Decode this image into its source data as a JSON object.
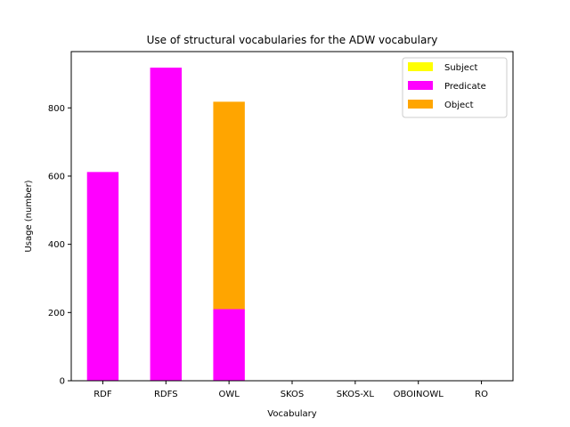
{
  "chart_data": {
    "type": "bar",
    "stacked": true,
    "title": "Use of structural vocabularies for the ADW vocabulary",
    "xlabel": "Vocabulary",
    "ylabel": "Usage (number)",
    "categories": [
      "RDF",
      "RDFS",
      "OWL",
      "SKOS",
      "SKOS-XL",
      "OBOINOWL",
      "RO"
    ],
    "yticks": [
      0,
      200,
      400,
      600,
      800
    ],
    "ylim": [
      0,
      965
    ],
    "grid": false,
    "legend_position": "top-right",
    "series": [
      {
        "name": "Subject",
        "color": "#ffff00",
        "values": [
          0,
          0,
          0,
          0,
          0,
          0,
          0
        ]
      },
      {
        "name": "Predicate",
        "color": "#ff00ff",
        "values": [
          612,
          918,
          210,
          0,
          0,
          0,
          0
        ]
      },
      {
        "name": "Object",
        "color": "#ffa500",
        "values": [
          0,
          0,
          608,
          0,
          0,
          0,
          0
        ]
      }
    ]
  }
}
